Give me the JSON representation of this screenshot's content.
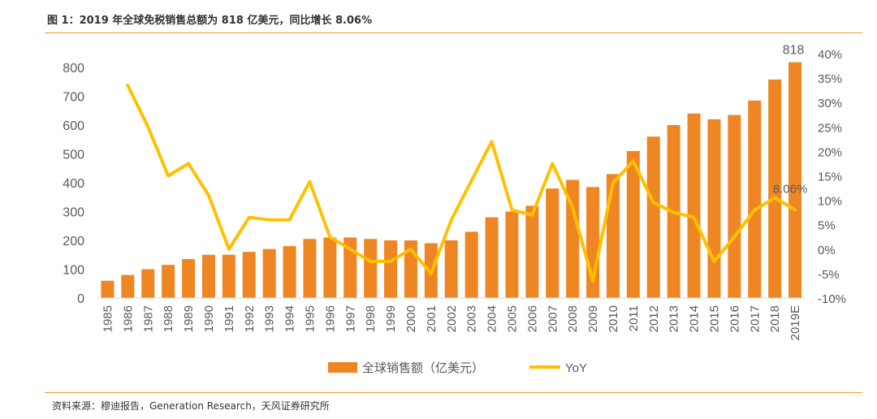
{
  "header": {
    "title": "图 1：2019 年全球免税销售总额为 818 亿美元，同比增长 8.06%"
  },
  "footer": {
    "source": "资料来源：穆迪报告，Generation Research，天风证券研究所"
  },
  "colors": {
    "bar": "#ef8624",
    "line": "#ffc000",
    "rule": "#f39c2e",
    "text": "#595959"
  },
  "chart_data": {
    "type": "bar",
    "title": "",
    "categories": [
      "1985",
      "1986",
      "1987",
      "1988",
      "1989",
      "1990",
      "1991",
      "1992",
      "1993",
      "1994",
      "1995",
      "1996",
      "1997",
      "1998",
      "1999",
      "2000",
      "2001",
      "2002",
      "2003",
      "2004",
      "2005",
      "2006",
      "2007",
      "2008",
      "2009",
      "2010",
      "2011",
      "2012",
      "2013",
      "2014",
      "2015",
      "2016",
      "2017",
      "2018",
      "2019E"
    ],
    "series": [
      {
        "name": "全球销售额（亿美元）",
        "type": "bar",
        "axis": "left",
        "values": [
          60,
          80,
          100,
          115,
          135,
          150,
          150,
          160,
          170,
          180,
          205,
          210,
          210,
          205,
          200,
          200,
          190,
          200,
          230,
          280,
          300,
          320,
          380,
          410,
          385,
          430,
          510,
          560,
          600,
          640,
          620,
          635,
          685,
          758,
          818
        ]
      },
      {
        "name": "YoY",
        "type": "line",
        "axis": "right",
        "values": [
          null,
          33.5,
          25,
          15,
          17.5,
          11,
          0,
          6.5,
          6,
          6,
          13.8,
          2.5,
          0,
          -2.5,
          -2.5,
          0,
          -5,
          6,
          14,
          22,
          8,
          7,
          17.5,
          8.5,
          -6.5,
          13.5,
          18,
          9.5,
          7.5,
          6.5,
          -2.5,
          2.5,
          8,
          10.5,
          8.06
        ]
      }
    ],
    "yleft": {
      "ylim": [
        0,
        800
      ],
      "ticks": [
        "0",
        "100",
        "200",
        "300",
        "400",
        "500",
        "600",
        "700",
        "800"
      ]
    },
    "yright": {
      "ylim": [
        -10,
        40
      ],
      "ticks": [
        "-10%",
        "-5%",
        "0%",
        "5%",
        "10%",
        "15%",
        "20%",
        "25%",
        "30%",
        "35%",
        "40%"
      ]
    },
    "annotations": [
      {
        "text": "818",
        "series": 0,
        "index": 34
      },
      {
        "text": "8.06%",
        "series": 1,
        "index": 34
      }
    ],
    "legend": {
      "position": "bottom",
      "items": [
        "全球销售额（亿美元）",
        "YoY"
      ]
    },
    "grid": false
  }
}
